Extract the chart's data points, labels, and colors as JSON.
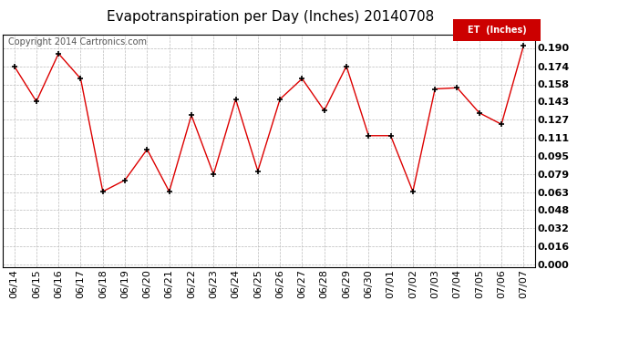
{
  "title": "Evapotranspiration per Day (Inches) 20140708",
  "copyright_text": "Copyright 2014 Cartronics.com",
  "legend_label": "ET  (Inches)",
  "dates": [
    "06/14",
    "06/15",
    "06/16",
    "06/17",
    "06/18",
    "06/19",
    "06/20",
    "06/21",
    "06/22",
    "06/23",
    "06/24",
    "06/25",
    "06/26",
    "06/27",
    "06/28",
    "06/29",
    "06/30",
    "07/01",
    "07/02",
    "07/03",
    "07/04",
    "07/05",
    "07/06",
    "07/07"
  ],
  "values": [
    0.174,
    0.143,
    0.185,
    0.163,
    0.064,
    0.074,
    0.101,
    0.064,
    0.131,
    0.079,
    0.145,
    0.082,
    0.145,
    0.163,
    0.135,
    0.174,
    0.113,
    0.113,
    0.064,
    0.154,
    0.155,
    0.133,
    0.123,
    0.192
  ],
  "line_color": "#dd0000",
  "marker_color": "#000000",
  "background_color": "#ffffff",
  "grid_color": "#bbbbbb",
  "title_fontsize": 11,
  "copyright_fontsize": 7,
  "tick_fontsize": 8,
  "ylim": [
    -0.002,
    0.202
  ],
  "yticks": [
    0.0,
    0.016,
    0.032,
    0.048,
    0.063,
    0.079,
    0.095,
    0.111,
    0.127,
    0.143,
    0.158,
    0.174,
    0.19
  ],
  "legend_bg": "#cc0000",
  "legend_text_color": "#ffffff"
}
